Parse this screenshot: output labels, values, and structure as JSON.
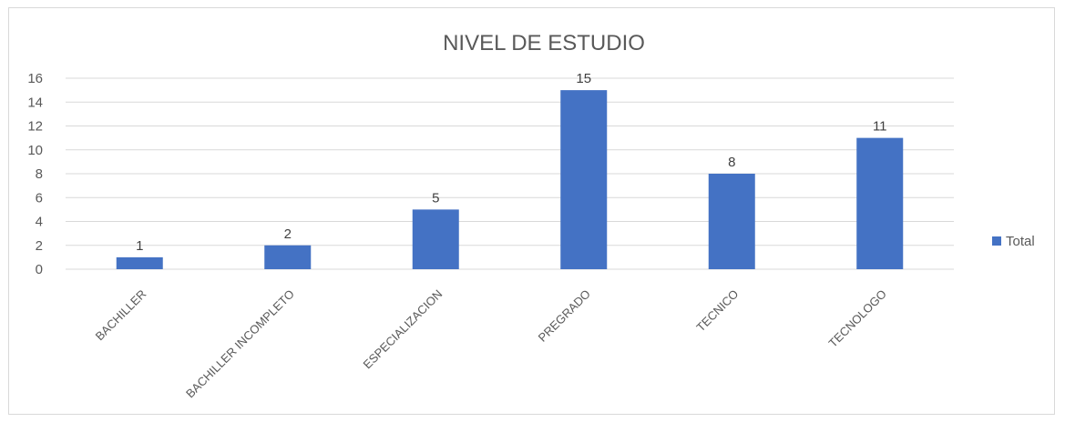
{
  "chart_data": {
    "type": "bar",
    "title": "NIVEL DE ESTUDIO",
    "categories": [
      "BACHILLER",
      "BACHILLER INCOMPLETO",
      "ESPECIALIZACION",
      "PREGRADO",
      "TECNICO",
      "TECNOLOGO"
    ],
    "series": [
      {
        "name": "Total",
        "values": [
          1,
          2,
          5,
          15,
          8,
          11
        ],
        "color": "#4472c4"
      }
    ],
    "ylim": [
      0,
      16
    ],
    "yticks": [
      0,
      2,
      4,
      6,
      8,
      10,
      12,
      14,
      16
    ],
    "grid": true,
    "legend": "right",
    "data_labels": true
  }
}
